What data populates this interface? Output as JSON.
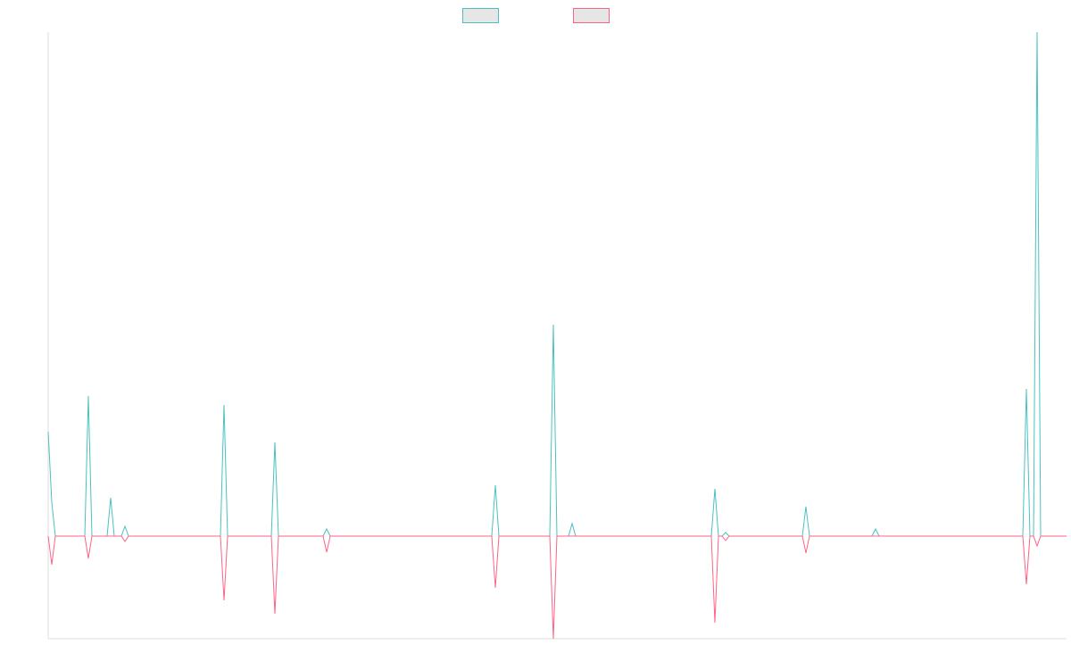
{
  "chart_data": {
    "type": "line",
    "xlim": [
      0,
      1141
    ],
    "ylim": [
      -115,
      565
    ],
    "legend": "top",
    "legend_fill": "#e6e6e6",
    "axis_color": "#dddddd",
    "series": [
      {
        "color": "#4bc0c0",
        "x": [
          0,
          4,
          8,
          41,
          45,
          49,
          66,
          70,
          74,
          82,
          86,
          90,
          193,
          197,
          201,
          250,
          254,
          258,
          308,
          312,
          316,
          497,
          501,
          505,
          562,
          566,
          570,
          583,
          587,
          591,
          743,
          747,
          751,
          755,
          759,
          763,
          845,
          849,
          853,
          923,
          927,
          931,
          1092,
          1096,
          1100,
          1104,
          1108,
          1112,
          1141
        ],
        "values": [
          117,
          38,
          0,
          0,
          157,
          0,
          0,
          43,
          0,
          0,
          11,
          0,
          0,
          147,
          0,
          0,
          105,
          0,
          0,
          8,
          0,
          0,
          57,
          0,
          0,
          237,
          0,
          0,
          14,
          0,
          0,
          53,
          0,
          0,
          4,
          0,
          0,
          33,
          0,
          0,
          8,
          0,
          0,
          165,
          0,
          0,
          565,
          0,
          0
        ]
      },
      {
        "color": "#ff6384",
        "x": [
          0,
          4,
          8,
          41,
          45,
          49,
          82,
          86,
          90,
          193,
          197,
          201,
          250,
          254,
          258,
          308,
          312,
          316,
          497,
          501,
          505,
          562,
          566,
          570,
          743,
          747,
          751,
          755,
          759,
          763,
          845,
          849,
          853,
          1092,
          1096,
          1100,
          1104,
          1108,
          1112,
          1141
        ],
        "values": [
          0,
          -32,
          0,
          0,
          -25,
          0,
          0,
          -6,
          0,
          0,
          -72,
          0,
          0,
          -87,
          0,
          0,
          -18,
          0,
          0,
          -58,
          0,
          0,
          -115,
          0,
          0,
          -97,
          0,
          0,
          -5,
          0,
          0,
          -19,
          0,
          0,
          -54,
          0,
          0,
          -11,
          0,
          0
        ]
      }
    ]
  }
}
